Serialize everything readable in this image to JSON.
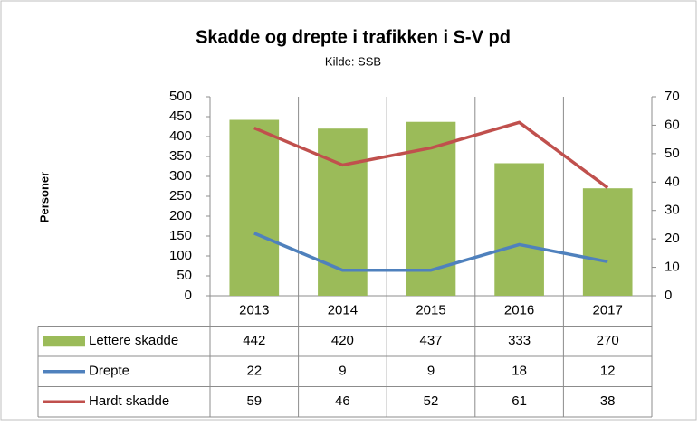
{
  "chart_data": {
    "type": "combo",
    "title": "Skadde og drepte i trafikken i S-V pd",
    "subtitle": "Kilde: SSB",
    "y_label": "Personer",
    "categories": [
      "2013",
      "2014",
      "2015",
      "2016",
      "2017"
    ],
    "series": [
      {
        "name": "Lettere skadde",
        "type": "bar",
        "color": "#9bbb59",
        "values": [
          442,
          420,
          437,
          333,
          270
        ]
      },
      {
        "name": "Drepte",
        "type": "line",
        "axis": "y2",
        "color": "#4f81bd",
        "values": [
          22,
          9,
          9,
          18,
          12
        ]
      },
      {
        "name": "Hardt skadde",
        "type": "line",
        "axis": "y2",
        "color": "#c0504d",
        "values": [
          59,
          46,
          52,
          61,
          38
        ]
      }
    ],
    "ylim": [
      0,
      500
    ],
    "yticks": [
      0,
      50,
      100,
      150,
      200,
      250,
      300,
      350,
      400,
      450,
      500
    ],
    "y2lim": [
      0,
      70
    ],
    "y2ticks": [
      0,
      10,
      20,
      30,
      40,
      50,
      60,
      70
    ],
    "data_table": true
  }
}
